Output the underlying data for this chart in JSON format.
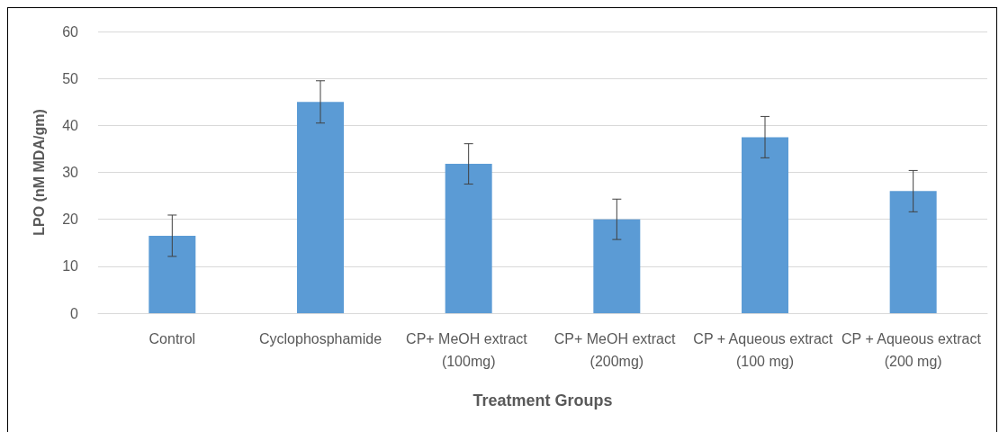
{
  "chart_data": {
    "type": "bar",
    "xlabel": "Treatment Groups",
    "ylabel": "LPO (nM MDA/gm)",
    "categories": [
      "Control",
      "Cyclophosphamide",
      "CP+ MeOH extract (100mg)",
      "CP+ MeOH extract (200mg)",
      "CP + Aqueous extract (100 mg)",
      "CP + Aqueous extract (200 mg)"
    ],
    "values": [
      16.5,
      45,
      31.8,
      20,
      37.5,
      26
    ],
    "errors": [
      4.4,
      4.5,
      4.3,
      4.3,
      4.4,
      4.4
    ],
    "color": "#5b9bd5",
    "ylim": [
      0,
      60
    ],
    "yticks": [
      0,
      10,
      20,
      30,
      40,
      50,
      60
    ],
    "grid": "y"
  }
}
